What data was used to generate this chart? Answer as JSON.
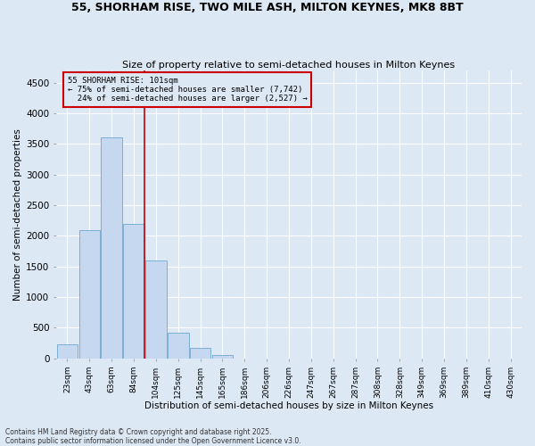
{
  "title_line1": "55, SHORHAM RISE, TWO MILE ASH, MILTON KEYNES, MK8 8BT",
  "title_line2": "Size of property relative to semi-detached houses in Milton Keynes",
  "xlabel": "Distribution of semi-detached houses by size in Milton Keynes",
  "ylabel": "Number of semi-detached properties",
  "footnote": "Contains HM Land Registry data © Crown copyright and database right 2025.\nContains public sector information licensed under the Open Government Licence v3.0.",
  "bar_labels": [
    "23sqm",
    "43sqm",
    "63sqm",
    "84sqm",
    "104sqm",
    "125sqm",
    "145sqm",
    "165sqm",
    "186sqm",
    "206sqm",
    "226sqm",
    "247sqm",
    "267sqm",
    "287sqm",
    "308sqm",
    "328sqm",
    "349sqm",
    "369sqm",
    "389sqm",
    "410sqm",
    "430sqm"
  ],
  "bar_values": [
    230,
    2090,
    3610,
    2200,
    1600,
    420,
    170,
    60,
    0,
    0,
    0,
    0,
    0,
    0,
    0,
    0,
    0,
    0,
    0,
    0,
    0
  ],
  "property_label": "55 SHORHAM RISE: 101sqm",
  "pct_smaller": 75,
  "count_smaller": 7742,
  "pct_larger": 24,
  "count_larger": 2527,
  "bar_color": "#c5d8f0",
  "bar_edge_color": "#7aafd4",
  "vline_color": "#cc0000",
  "annotation_box_color": "#cc0000",
  "background_color": "#dde8f5",
  "grid_color": "#ffffff",
  "ylim": [
    0,
    4700
  ],
  "yticks": [
    0,
    500,
    1000,
    1500,
    2000,
    2500,
    3000,
    3500,
    4000,
    4500
  ],
  "vline_x": 3.5
}
